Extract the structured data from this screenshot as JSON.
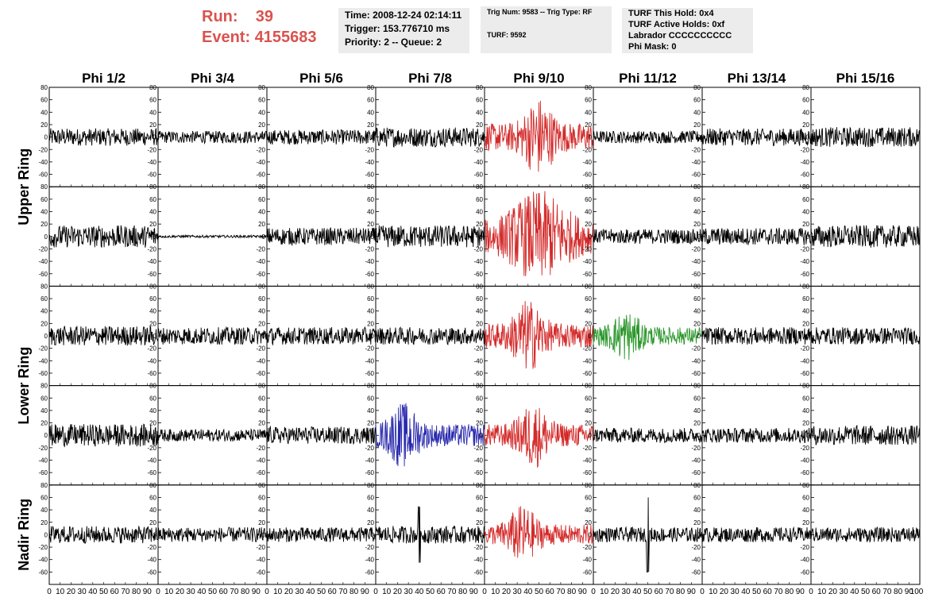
{
  "header": {
    "run_label": "Run:",
    "run_value": "39",
    "event_label": "Event:",
    "event_value": "4155683"
  },
  "info_box_1": {
    "time": "Time: 2008-12-24 02:14:11",
    "trigger": "Trigger: 153.776710 ms",
    "priority": "Priority: 2 -- Queue: 2"
  },
  "info_box_2": {
    "trig": "Trig Num: 9583 -- Trig Type: RF",
    "turf": "TURF: 9592"
  },
  "info_box_3": {
    "hold": "TURF This Hold: 0x4",
    "active": "TURF Active Holds: 0xf",
    "labrador": "Labrador CCCCCCCCCC",
    "phimask": "Phi Mask: 0"
  },
  "colors": {
    "normal": "#000000",
    "red": "#d42a2a",
    "green": "#2a962a",
    "blue": "#2a2aae",
    "header_red": "#d9534f"
  },
  "chart_data": {
    "type": "line",
    "columns": [
      "Phi 1/2",
      "Phi 3/4",
      "Phi 5/6",
      "Phi 7/8",
      "Phi 9/10",
      "Phi 11/12",
      "Phi 13/14",
      "Phi 15/16"
    ],
    "ring_labels": [
      "Upper Ring",
      "Lower Ring",
      "Nadir Ring"
    ],
    "x_ticks": [
      0,
      10,
      20,
      30,
      40,
      50,
      60,
      70,
      80,
      90,
      100
    ],
    "x_tick_labels_bottom": [
      "0",
      "10",
      "20",
      "30",
      "40",
      "50",
      "60",
      "70",
      "80",
      "90",
      "0",
      "10",
      "20",
      "30",
      "40",
      "50",
      "60",
      "70",
      "80",
      "90",
      "0",
      "10",
      "20",
      "30",
      "40",
      "50",
      "60",
      "70",
      "80",
      "90",
      "0",
      "10",
      "20",
      "30",
      "40",
      "50",
      "60",
      "70",
      "80",
      "90",
      "0",
      "10",
      "20",
      "30",
      "40",
      "50",
      "60",
      "70",
      "80",
      "90",
      "0",
      "10",
      "20",
      "30",
      "40",
      "50",
      "60",
      "70",
      "80",
      "90",
      "0",
      "10",
      "20",
      "30",
      "40",
      "50",
      "60",
      "70",
      "80",
      "90",
      "0",
      "10",
      "20",
      "30",
      "40",
      "50",
      "60",
      "70",
      "80",
      "90",
      "100"
    ],
    "y_ticks": [
      -60,
      -40,
      -20,
      0,
      20,
      40,
      60,
      80
    ],
    "xlim": [
      0,
      100
    ],
    "ylim": [
      -80,
      80
    ],
    "grid": false,
    "row_height_units": 160,
    "panels": [
      {
        "row": 0,
        "col": 0,
        "amp": 14,
        "color": "normal"
      },
      {
        "row": 0,
        "col": 1,
        "amp": 10,
        "color": "normal"
      },
      {
        "row": 0,
        "col": 2,
        "amp": 12,
        "color": "normal"
      },
      {
        "row": 0,
        "col": 3,
        "amp": 16,
        "color": "normal"
      },
      {
        "row": 0,
        "col": 4,
        "amp": 22,
        "color": "red",
        "burst": [
          45,
          55
        ]
      },
      {
        "row": 0,
        "col": 5,
        "amp": 10,
        "color": "normal"
      },
      {
        "row": 0,
        "col": 6,
        "amp": 14,
        "color": "normal"
      },
      {
        "row": 0,
        "col": 7,
        "amp": 16,
        "color": "normal"
      },
      {
        "row": 1,
        "col": 0,
        "amp": 18,
        "color": "normal"
      },
      {
        "row": 1,
        "col": 1,
        "amp": 2,
        "color": "normal"
      },
      {
        "row": 1,
        "col": 2,
        "amp": 14,
        "color": "normal"
      },
      {
        "row": 1,
        "col": 3,
        "amp": 18,
        "color": "normal"
      },
      {
        "row": 1,
        "col": 4,
        "amp": 25,
        "color": "red",
        "burst": [
          40,
          60
        ]
      },
      {
        "row": 1,
        "col": 5,
        "amp": 12,
        "color": "normal"
      },
      {
        "row": 1,
        "col": 6,
        "amp": 14,
        "color": "normal"
      },
      {
        "row": 1,
        "col": 7,
        "amp": 18,
        "color": "normal"
      },
      {
        "row": 2,
        "col": 0,
        "amp": 16,
        "color": "normal"
      },
      {
        "row": 2,
        "col": 1,
        "amp": 14,
        "color": "normal"
      },
      {
        "row": 2,
        "col": 2,
        "amp": 14,
        "color": "normal"
      },
      {
        "row": 2,
        "col": 3,
        "amp": 14,
        "color": "normal"
      },
      {
        "row": 2,
        "col": 4,
        "amp": 20,
        "color": "red",
        "burst": [
          35,
          45
        ]
      },
      {
        "row": 2,
        "col": 5,
        "amp": 14,
        "color": "green",
        "burst": [
          25,
          35
        ]
      },
      {
        "row": 2,
        "col": 6,
        "amp": 14,
        "color": "normal"
      },
      {
        "row": 2,
        "col": 7,
        "amp": 14,
        "color": "normal"
      },
      {
        "row": 3,
        "col": 0,
        "amp": 18,
        "color": "normal"
      },
      {
        "row": 3,
        "col": 1,
        "amp": 10,
        "color": "normal"
      },
      {
        "row": 3,
        "col": 2,
        "amp": 14,
        "color": "normal"
      },
      {
        "row": 3,
        "col": 3,
        "amp": 18,
        "color": "blue",
        "burst": [
          20,
          30
        ]
      },
      {
        "row": 3,
        "col": 4,
        "amp": 18,
        "color": "red",
        "burst": [
          40,
          50
        ]
      },
      {
        "row": 3,
        "col": 5,
        "amp": 12,
        "color": "normal"
      },
      {
        "row": 3,
        "col": 6,
        "amp": 12,
        "color": "normal"
      },
      {
        "row": 3,
        "col": 7,
        "amp": 16,
        "color": "normal"
      },
      {
        "row": 4,
        "col": 0,
        "amp": 14,
        "color": "normal"
      },
      {
        "row": 4,
        "col": 1,
        "amp": 12,
        "color": "normal"
      },
      {
        "row": 4,
        "col": 2,
        "amp": 12,
        "color": "normal"
      },
      {
        "row": 4,
        "col": 3,
        "amp": 14,
        "color": "normal",
        "spike": [
          40,
          -45
        ]
      },
      {
        "row": 4,
        "col": 4,
        "amp": 16,
        "color": "red",
        "burst": [
          30,
          40
        ]
      },
      {
        "row": 4,
        "col": 5,
        "amp": 12,
        "color": "normal",
        "spike": [
          50,
          60
        ]
      },
      {
        "row": 4,
        "col": 6,
        "amp": 12,
        "color": "normal"
      },
      {
        "row": 4,
        "col": 7,
        "amp": 12,
        "color": "normal"
      }
    ]
  }
}
